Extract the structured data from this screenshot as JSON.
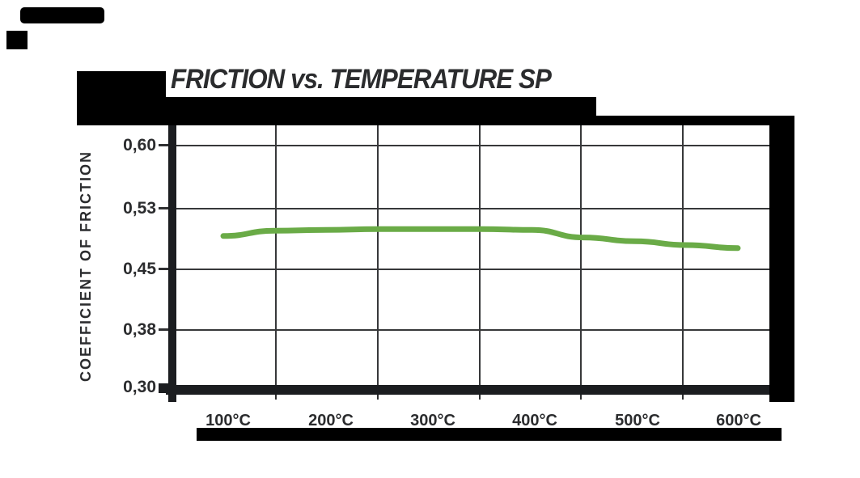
{
  "page": {
    "background": "#ffffff"
  },
  "colors": {
    "accent_green": "#6aab47",
    "ink": "#2b2c2e",
    "gridline": "#37383a",
    "axis_bar": "#1b1d20",
    "mask_black": "#000000"
  },
  "chart_data": {
    "type": "line",
    "title": "FRICTION vs. TEMPERATURE SP",
    "xlabel": "",
    "ylabel": "COEFFICIENT OF FRICTION",
    "x_unit": "°C",
    "x_tick_labels": [
      "100°C",
      "200°C",
      "300°C",
      "400°C",
      "500°C",
      "600°C"
    ],
    "y_tick_labels": [
      "0,60",
      "0,53",
      "0,45",
      "0,38",
      "0,30"
    ],
    "y_tick_values": [
      0.6,
      0.53,
      0.45,
      0.38,
      0.3
    ],
    "ylim": [
      0.3,
      0.6
    ],
    "xlim": [
      100,
      600
    ],
    "grid": true,
    "legend": "none",
    "series": [
      {
        "name": "SP",
        "color": "#6aab47",
        "x": [
          100,
          150,
          200,
          250,
          300,
          350,
          400,
          450,
          500,
          550,
          600
        ],
        "y": [
          0.494,
          0.501,
          0.502,
          0.503,
          0.503,
          0.503,
          0.502,
          0.492,
          0.487,
          0.482,
          0.478
        ]
      }
    ]
  }
}
